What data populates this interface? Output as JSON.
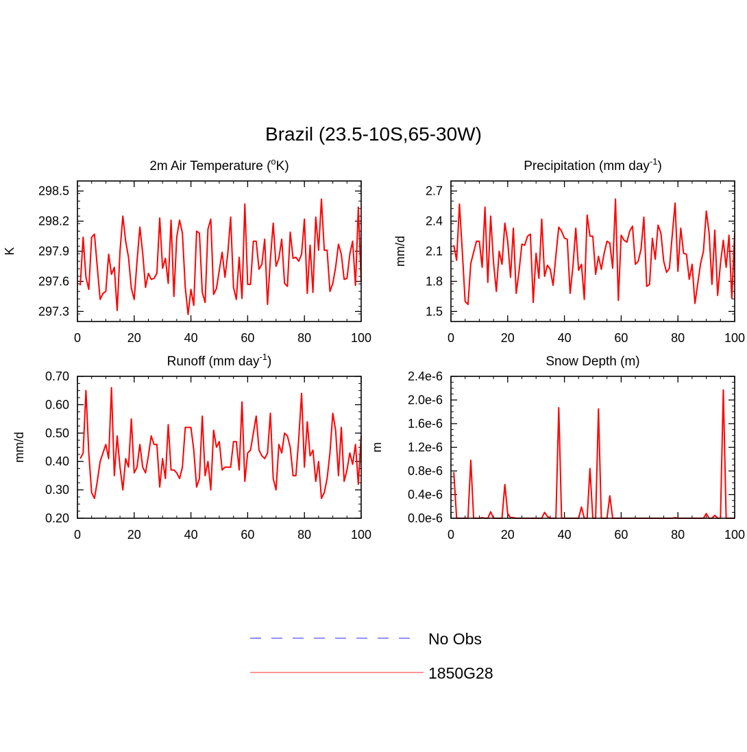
{
  "title": "Brazil (23.5-10S,65-30W)",
  "legend": [
    {
      "label": "No Obs",
      "color": "#6e6eff",
      "style": "dashed"
    },
    {
      "label": "1850G28",
      "color": "#ff0000",
      "style": "solid"
    }
  ],
  "chart_data": [
    {
      "type": "line",
      "title_main": "2m Air Temperature (",
      "title_sup": "o",
      "title_end": "K)",
      "ylabel": "K",
      "xlim": [
        0,
        100
      ],
      "ylim": [
        297.2,
        298.6
      ],
      "xticks": [
        "0",
        "20",
        "40",
        "60",
        "80",
        "100"
      ],
      "yticks": [
        "297.3",
        "297.6",
        "297.9",
        "298.2",
        "298.5"
      ],
      "series": [
        {
          "name": "1850G28",
          "color": "#ff0000",
          "x": [
            1,
            2,
            3,
            4,
            5,
            6,
            7,
            8,
            9,
            10,
            11,
            12,
            13,
            14,
            15,
            16,
            17,
            18,
            19,
            20,
            21,
            22,
            23,
            24,
            25,
            26,
            27,
            28,
            29,
            30,
            31,
            32,
            33,
            34,
            35,
            36,
            37,
            38,
            39,
            40,
            41,
            42,
            43,
            44,
            45,
            46,
            47,
            48,
            49,
            50,
            51,
            52,
            53,
            54,
            55,
            56,
            57,
            58,
            59,
            60,
            61,
            62,
            63,
            64,
            65,
            66,
            67,
            68,
            69,
            70,
            71,
            72,
            73,
            74,
            75,
            76,
            77,
            78,
            79,
            80,
            81,
            82,
            83,
            84,
            85,
            86,
            87,
            88,
            89,
            90,
            91,
            92,
            93,
            94,
            95,
            96,
            97,
            98,
            99,
            100
          ],
          "values": [
            297.56,
            298.04,
            297.64,
            297.52,
            298.04,
            298.07,
            297.74,
            297.42,
            297.48,
            297.5,
            297.87,
            297.67,
            297.74,
            297.31,
            297.9,
            298.25,
            298.0,
            297.84,
            297.53,
            297.42,
            297.8,
            298.14,
            297.88,
            297.54,
            297.68,
            297.62,
            297.63,
            297.68,
            298.23,
            297.73,
            297.83,
            297.58,
            298.21,
            297.45,
            298.04,
            298.21,
            298.08,
            297.54,
            297.27,
            297.52,
            297.36,
            298.1,
            298.08,
            297.49,
            297.39,
            298.12,
            298.22,
            297.47,
            297.53,
            297.71,
            297.89,
            297.64,
            297.88,
            298.24,
            297.54,
            297.42,
            297.84,
            297.43,
            298.37,
            297.57,
            297.57,
            298.0,
            298.0,
            297.72,
            297.77,
            298.02,
            297.37,
            297.82,
            298.18,
            297.75,
            297.83,
            298.02,
            297.58,
            297.55,
            298.09,
            297.83,
            297.84,
            297.8,
            297.87,
            298.22,
            297.48,
            297.96,
            297.49,
            298.24,
            297.91,
            298.42,
            297.91,
            297.91,
            297.5,
            297.58,
            297.74,
            297.97,
            297.87,
            297.62,
            297.63,
            297.87,
            298.0,
            297.56,
            298.34,
            297.6
          ]
        }
      ]
    },
    {
      "type": "line",
      "title_main": "Precipitation (mm day",
      "title_sup": "-1",
      "title_end": ")",
      "ylabel": "mm/d",
      "xlim": [
        0,
        100
      ],
      "ylim": [
        1.4,
        2.8
      ],
      "xticks": [
        "0",
        "20",
        "40",
        "60",
        "80",
        "100"
      ],
      "yticks": [
        "1.5",
        "1.8",
        "2.1",
        "2.4",
        "2.7"
      ],
      "series": [
        {
          "name": "1850G28",
          "color": "#ff0000",
          "x": [
            1,
            2,
            3,
            4,
            5,
            6,
            7,
            8,
            9,
            10,
            11,
            12,
            13,
            14,
            15,
            16,
            17,
            18,
            19,
            20,
            21,
            22,
            23,
            24,
            25,
            26,
            27,
            28,
            29,
            30,
            31,
            32,
            33,
            34,
            35,
            36,
            37,
            38,
            39,
            40,
            41,
            42,
            43,
            44,
            45,
            46,
            47,
            48,
            49,
            50,
            51,
            52,
            53,
            54,
            55,
            56,
            57,
            58,
            59,
            60,
            61,
            62,
            63,
            64,
            65,
            66,
            67,
            68,
            69,
            70,
            71,
            72,
            73,
            74,
            75,
            76,
            77,
            78,
            79,
            80,
            81,
            82,
            83,
            84,
            85,
            86,
            87,
            88,
            89,
            90,
            91,
            92,
            93,
            94,
            95,
            96,
            97,
            98,
            99,
            100
          ],
          "values": [
            2.16,
            2.01,
            2.57,
            2.1,
            1.6,
            1.57,
            1.98,
            2.09,
            2.2,
            2.2,
            1.94,
            2.54,
            1.79,
            2.45,
            1.99,
            1.7,
            2.1,
            1.97,
            2.38,
            2.2,
            1.84,
            2.33,
            1.68,
            1.9,
            2.17,
            2.16,
            2.25,
            2.27,
            1.59,
            2.08,
            1.83,
            2.42,
            1.85,
            1.96,
            1.92,
            1.76,
            2.06,
            2.34,
            2.3,
            2.23,
            2.22,
            1.68,
            1.95,
            2.33,
            1.91,
            1.97,
            1.62,
            2.46,
            2.25,
            2.25,
            1.87,
            2.05,
            1.92,
            2.08,
            2.2,
            2.18,
            1.93,
            2.62,
            1.61,
            2.26,
            2.21,
            2.19,
            2.3,
            2.35,
            1.97,
            2.0,
            2.12,
            2.44,
            1.75,
            1.77,
            2.23,
            2.02,
            2.36,
            2.28,
            2.0,
            1.89,
            1.93,
            2.26,
            2.58,
            1.9,
            2.33,
            2.08,
            2.07,
            1.82,
            1.97,
            1.58,
            1.78,
            1.98,
            2.1,
            2.5,
            2.28,
            1.77,
            2.31,
            1.66,
            1.98,
            2.21,
            1.94,
            2.26,
            1.63,
            2.28
          ]
        }
      ]
    },
    {
      "type": "line",
      "title_main": "Runoff (mm day",
      "title_sup": "-1",
      "title_end": ")",
      "ylabel": "mm/d",
      "xlim": [
        0,
        100
      ],
      "ylim": [
        0.2,
        0.7
      ],
      "xticks": [
        "0",
        "20",
        "40",
        "60",
        "80",
        "100"
      ],
      "yticks": [
        "0.20",
        "0.30",
        "0.40",
        "0.50",
        "0.60",
        "0.70"
      ],
      "series": [
        {
          "name": "1850G28",
          "color": "#ff0000",
          "x": [
            1,
            2,
            3,
            4,
            5,
            6,
            7,
            8,
            9,
            10,
            11,
            12,
            13,
            14,
            15,
            16,
            17,
            18,
            19,
            20,
            21,
            22,
            23,
            24,
            25,
            26,
            27,
            28,
            29,
            30,
            31,
            32,
            33,
            34,
            35,
            36,
            37,
            38,
            39,
            40,
            41,
            42,
            43,
            44,
            45,
            46,
            47,
            48,
            49,
            50,
            51,
            52,
            53,
            54,
            55,
            56,
            57,
            58,
            59,
            60,
            61,
            62,
            63,
            64,
            65,
            66,
            67,
            68,
            69,
            70,
            71,
            72,
            73,
            74,
            75,
            76,
            77,
            78,
            79,
            80,
            81,
            82,
            83,
            84,
            85,
            86,
            87,
            88,
            89,
            90,
            91,
            92,
            93,
            94,
            95,
            96,
            97,
            98,
            99,
            100
          ],
          "values": [
            0.41,
            0.43,
            0.65,
            0.43,
            0.29,
            0.27,
            0.33,
            0.4,
            0.43,
            0.46,
            0.41,
            0.66,
            0.35,
            0.49,
            0.38,
            0.3,
            0.41,
            0.38,
            0.55,
            0.36,
            0.38,
            0.46,
            0.38,
            0.36,
            0.42,
            0.49,
            0.46,
            0.46,
            0.31,
            0.41,
            0.34,
            0.53,
            0.37,
            0.37,
            0.36,
            0.34,
            0.38,
            0.52,
            0.52,
            0.52,
            0.44,
            0.31,
            0.34,
            0.56,
            0.35,
            0.4,
            0.3,
            0.51,
            0.45,
            0.47,
            0.37,
            0.38,
            0.38,
            0.38,
            0.47,
            0.47,
            0.37,
            0.61,
            0.33,
            0.43,
            0.44,
            0.5,
            0.56,
            0.44,
            0.42,
            0.41,
            0.43,
            0.57,
            0.34,
            0.3,
            0.46,
            0.43,
            0.5,
            0.49,
            0.45,
            0.35,
            0.35,
            0.48,
            0.64,
            0.38,
            0.54,
            0.42,
            0.44,
            0.33,
            0.4,
            0.27,
            0.29,
            0.34,
            0.43,
            0.57,
            0.51,
            0.35,
            0.52,
            0.33,
            0.37,
            0.43,
            0.39,
            0.46,
            0.32,
            0.49
          ]
        }
      ]
    },
    {
      "type": "line",
      "title_main": "Snow Depth (m)",
      "title_sup": "",
      "title_end": "",
      "ylabel": "m",
      "xlim": [
        0,
        100
      ],
      "ylim": [
        0,
        2.4e-06
      ],
      "xticks": [
        "0",
        "20",
        "40",
        "60",
        "80",
        "100"
      ],
      "yticks": [
        "0.0e-6",
        "0.4e-6",
        "0.8e-6",
        "1.2e-6",
        "1.6e-6",
        "2.0e-6",
        "2.4e-6"
      ],
      "series": [
        {
          "name": "1850G28",
          "color": "#ff0000",
          "x": [
            1,
            2,
            3,
            4,
            5,
            6,
            7,
            8,
            9,
            10,
            11,
            12,
            13,
            14,
            15,
            16,
            17,
            18,
            19,
            20,
            21,
            22,
            23,
            24,
            25,
            26,
            27,
            28,
            29,
            30,
            31,
            32,
            33,
            34,
            35,
            36,
            37,
            38,
            39,
            40,
            41,
            42,
            43,
            44,
            45,
            46,
            47,
            48,
            49,
            50,
            51,
            52,
            53,
            54,
            55,
            56,
            57,
            58,
            59,
            60,
            61,
            62,
            63,
            64,
            65,
            66,
            67,
            68,
            69,
            70,
            71,
            72,
            73,
            74,
            75,
            76,
            77,
            78,
            79,
            80,
            81,
            82,
            83,
            84,
            85,
            86,
            87,
            88,
            89,
            90,
            91,
            92,
            93,
            94,
            95,
            96,
            97,
            98,
            99,
            100
          ],
          "values": [
            7.8e-07,
            0,
            0,
            0,
            0,
            0,
            9.8e-07,
            0,
            0,
            0,
            1e-08,
            0,
            0,
            1.1e-07,
            0,
            0,
            0,
            0,
            5.7e-07,
            8e-08,
            1e-08,
            1e-08,
            0,
            0,
            0,
            0,
            0,
            0,
            0,
            0,
            0,
            0,
            1e-07,
            3e-08,
            0,
            0,
            0,
            1.87e-06,
            0,
            0,
            0,
            0,
            0,
            0,
            0,
            1.9e-07,
            0,
            0,
            8.4e-07,
            0,
            0,
            1.85e-06,
            0,
            0,
            0,
            3.8e-07,
            0,
            0,
            0,
            0,
            0,
            0,
            0,
            0,
            0,
            0,
            0,
            0,
            0,
            0,
            0,
            0,
            0,
            0,
            0,
            0,
            0,
            0,
            1e-08,
            0,
            0,
            0,
            0,
            0,
            0,
            0,
            0,
            0,
            0,
            8e-08,
            0,
            0,
            5e-08,
            0,
            0,
            2.17e-06,
            0,
            0,
            0,
            0
          ]
        }
      ]
    }
  ]
}
